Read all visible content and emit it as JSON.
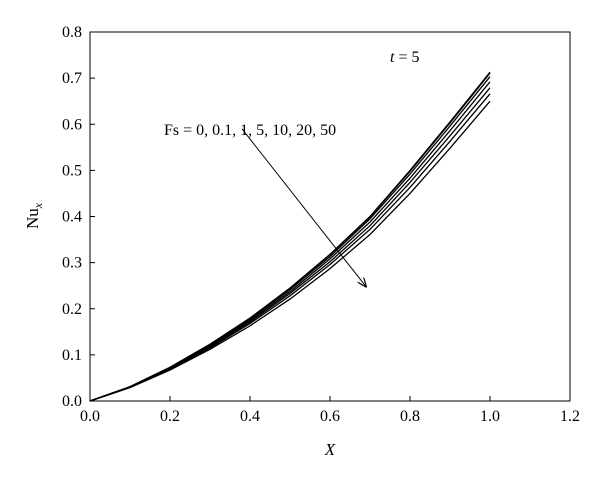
{
  "chart_data": {
    "type": "line",
    "title": "",
    "xlabel": "X",
    "ylabel_main": "Nu",
    "ylabel_sub": "x",
    "xlim": [
      0,
      1.2
    ],
    "ylim": [
      0,
      0.8
    ],
    "x_ticks": [
      "0.0",
      "0.2",
      "0.4",
      "0.6",
      "0.8",
      "1.0",
      "1.2"
    ],
    "y_ticks": [
      "0.0",
      "0.1",
      "0.2",
      "0.3",
      "0.4",
      "0.5",
      "0.6",
      "0.7",
      "0.8"
    ],
    "grid": false,
    "annotations": {
      "time_var": "t",
      "time_eq": " = 5",
      "fs_label": "Fs = 0, 0.1, 1, 5, 10, 20, 50"
    },
    "arrow": {
      "from": [
        0.38,
        0.59
      ],
      "to": [
        0.69,
        0.248
      ]
    },
    "x": [
      0,
      0.1,
      0.2,
      0.3,
      0.4,
      0.5,
      0.6,
      0.7,
      0.8,
      0.9,
      1.0
    ],
    "series": [
      {
        "values": [
          0,
          0.031,
          0.073,
          0.123,
          0.18,
          0.245,
          0.318,
          0.4,
          0.5,
          0.605,
          0.713
        ]
      },
      {
        "values": [
          0,
          0.031,
          0.073,
          0.123,
          0.179,
          0.244,
          0.317,
          0.399,
          0.498,
          0.603,
          0.711
        ]
      },
      {
        "values": [
          0,
          0.031,
          0.072,
          0.121,
          0.177,
          0.241,
          0.313,
          0.395,
          0.492,
          0.596,
          0.703
        ]
      },
      {
        "values": [
          0,
          0.03,
          0.071,
          0.119,
          0.174,
          0.237,
          0.308,
          0.388,
          0.483,
          0.586,
          0.692
        ]
      },
      {
        "values": [
          0,
          0.03,
          0.07,
          0.117,
          0.171,
          0.233,
          0.302,
          0.38,
          0.474,
          0.575,
          0.679
        ]
      },
      {
        "values": [
          0,
          0.03,
          0.069,
          0.115,
          0.168,
          0.228,
          0.296,
          0.372,
          0.463,
          0.563,
          0.666
        ]
      },
      {
        "values": [
          0,
          0.029,
          0.067,
          0.112,
          0.163,
          0.221,
          0.287,
          0.361,
          0.45,
          0.548,
          0.65
        ]
      }
    ]
  }
}
